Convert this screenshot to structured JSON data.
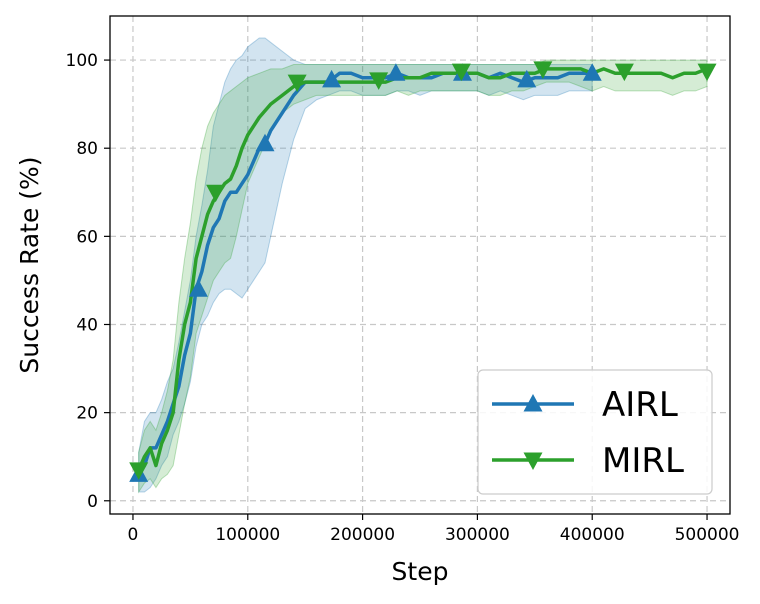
{
  "chart_data": {
    "type": "line",
    "xlabel": "Step",
    "ylabel": "Success Rate (%)",
    "xlim": [
      -20000,
      520000
    ],
    "ylim": [
      -3,
      110
    ],
    "x_ticks": [
      0,
      100000,
      200000,
      300000,
      400000,
      500000
    ],
    "x_tick_labels": [
      "0",
      "100000",
      "200000",
      "300000",
      "400000",
      "500000"
    ],
    "y_ticks": [
      0,
      20,
      40,
      60,
      80,
      100
    ],
    "y_tick_labels": [
      "0",
      "20",
      "40",
      "60",
      "80",
      "100"
    ],
    "grid": true,
    "legend_position": "bottom-right",
    "series": [
      {
        "name": "AIRL",
        "color": "#1f77b4",
        "marker": "triangle-up",
        "x": [
          5000,
          10000,
          15000,
          20000,
          25000,
          30000,
          35000,
          40000,
          45000,
          50000,
          55000,
          60000,
          65000,
          70000,
          75000,
          80000,
          85000,
          90000,
          95000,
          100000,
          105000,
          110000,
          115000,
          120000,
          130000,
          140000,
          150000,
          160000,
          170000,
          180000,
          190000,
          200000,
          210000,
          220000,
          230000,
          240000,
          250000,
          260000,
          270000,
          280000,
          290000,
          300000,
          310000,
          320000,
          330000,
          340000,
          350000,
          360000,
          370000,
          380000,
          390000,
          400000
        ],
        "y": [
          6,
          8,
          12,
          12,
          15,
          18,
          22,
          26,
          33,
          38,
          48,
          52,
          58,
          62,
          64,
          68,
          70,
          70,
          72,
          74,
          77,
          80,
          81,
          84,
          88,
          92,
          95,
          95,
          95,
          97,
          97,
          96,
          96,
          96,
          97,
          96,
          96,
          96,
          97,
          97,
          97,
          97,
          96,
          97,
          96,
          95,
          96,
          96,
          96,
          97,
          97,
          97
        ],
        "upper": [
          11,
          18,
          20,
          20,
          23,
          27,
          30,
          36,
          43,
          50,
          60,
          67,
          75,
          85,
          90,
          95,
          98,
          100,
          101,
          103,
          104,
          105,
          105,
          104,
          102,
          100,
          99,
          99,
          99,
          99,
          99,
          99,
          99,
          99,
          99,
          99,
          99,
          99,
          99,
          99,
          99,
          99,
          99,
          99,
          99,
          99,
          99,
          99,
          99,
          99,
          99,
          99
        ],
        "lower": [
          2,
          2,
          3,
          5,
          8,
          10,
          15,
          18,
          22,
          27,
          35,
          40,
          42,
          45,
          47,
          48,
          48,
          47,
          46,
          48,
          50,
          52,
          54,
          60,
          72,
          82,
          89,
          91,
          92,
          93,
          93,
          92,
          92,
          92,
          93,
          93,
          92,
          93,
          93,
          93,
          93,
          93,
          92,
          93,
          92,
          91,
          92,
          92,
          92,
          93,
          93,
          93
        ],
        "marker_x": [
          5000,
          57000,
          115000,
          173000,
          229000,
          287000,
          343000,
          400000
        ],
        "marker_y": [
          6,
          48,
          81,
          95.5,
          97,
          97,
          95.5,
          97
        ]
      },
      {
        "name": "MIRL",
        "color": "#2ca02c",
        "marker": "triangle-down",
        "x": [
          5000,
          10000,
          15000,
          20000,
          25000,
          30000,
          35000,
          40000,
          45000,
          50000,
          55000,
          60000,
          65000,
          70000,
          75000,
          80000,
          85000,
          90000,
          95000,
          100000,
          110000,
          120000,
          130000,
          140000,
          150000,
          160000,
          170000,
          180000,
          190000,
          200000,
          210000,
          220000,
          230000,
          240000,
          250000,
          260000,
          270000,
          280000,
          290000,
          300000,
          310000,
          320000,
          330000,
          340000,
          350000,
          360000,
          370000,
          380000,
          390000,
          400000,
          410000,
          420000,
          430000,
          440000,
          450000,
          460000,
          470000,
          480000,
          490000,
          500000
        ],
        "y": [
          7,
          10,
          12,
          8,
          13,
          16,
          20,
          32,
          40,
          45,
          55,
          60,
          65,
          68,
          70,
          72,
          73,
          76,
          80,
          83,
          87,
          90,
          92,
          94,
          95,
          95,
          95,
          95,
          95,
          95,
          95,
          95,
          96,
          96,
          96,
          97,
          97,
          97,
          97,
          97,
          96,
          96,
          97,
          97,
          97,
          98,
          98,
          98,
          98,
          97,
          98,
          97,
          97,
          97,
          97,
          97,
          96,
          97,
          97,
          98
        ],
        "upper": [
          11,
          16,
          18,
          16,
          20,
          25,
          32,
          45,
          55,
          63,
          73,
          80,
          85,
          88,
          90,
          92,
          93,
          94,
          95,
          96,
          97,
          98,
          98,
          99,
          99,
          99,
          99,
          99,
          99,
          99,
          99,
          99,
          99,
          99,
          99,
          99,
          99,
          99,
          99,
          99,
          99,
          99,
          99,
          99,
          99,
          100,
          100,
          100,
          100,
          100,
          100,
          100,
          100,
          100,
          100,
          100,
          100,
          100,
          100,
          100
        ],
        "lower": [
          2,
          4,
          5,
          3,
          5,
          6,
          8,
          15,
          22,
          28,
          38,
          42,
          46,
          50,
          52,
          54,
          55,
          60,
          66,
          72,
          78,
          84,
          88,
          90,
          91,
          92,
          92,
          92,
          92,
          92,
          92,
          92,
          93,
          92,
          93,
          93,
          93,
          93,
          93,
          93,
          92,
          92,
          93,
          93,
          94,
          95,
          95,
          95,
          94,
          93,
          94,
          93,
          93,
          93,
          93,
          93,
          92,
          93,
          93,
          94
        ],
        "marker_x": [
          5000,
          72000,
          143000,
          214000,
          286000,
          357000,
          428000,
          500000
        ],
        "marker_y": [
          7,
          70,
          95,
          95.5,
          97.5,
          98,
          97.5,
          97.5
        ]
      }
    ]
  }
}
